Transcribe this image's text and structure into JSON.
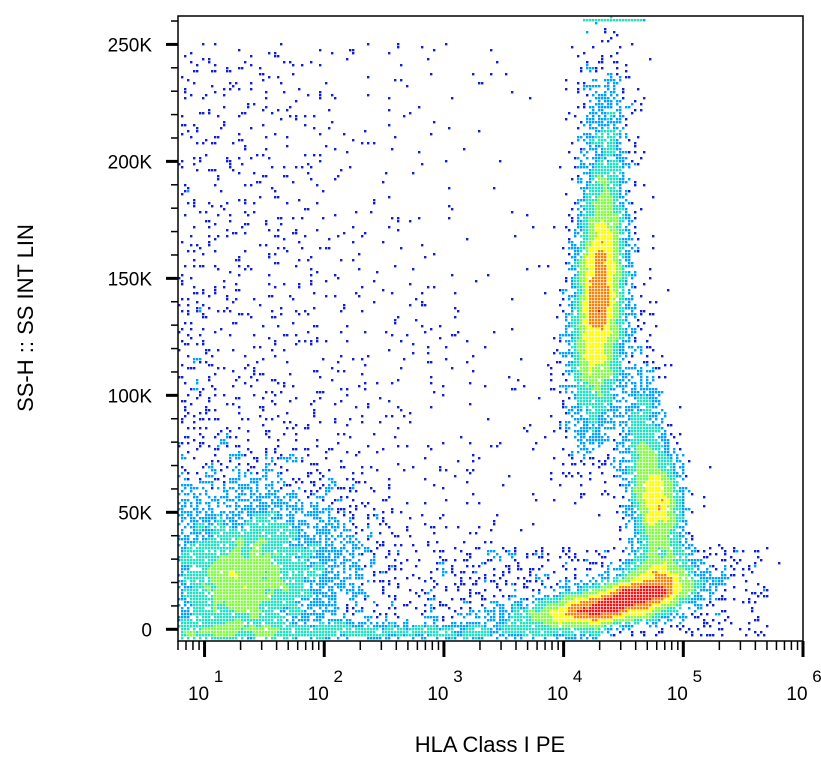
{
  "chart_data": {
    "type": "scatter",
    "xlabel": "HLA Class I PE",
    "ylabel": "SS-H :: SS INT LIN",
    "x_scale": "log",
    "xlim": [
      6,
      1000000
    ],
    "ylim": [
      -5000,
      262144
    ],
    "x_ticks": [
      {
        "value": 10,
        "base": "10",
        "exp": "1"
      },
      {
        "value": 100,
        "base": "10",
        "exp": "2"
      },
      {
        "value": 1000,
        "base": "10",
        "exp": "3"
      },
      {
        "value": 10000,
        "base": "10",
        "exp": "4"
      },
      {
        "value": 100000,
        "base": "10",
        "exp": "5"
      },
      {
        "value": 1000000,
        "base": "10",
        "exp": "6"
      }
    ],
    "y_ticks": [
      {
        "value": 0,
        "label": "0"
      },
      {
        "value": 50000,
        "label": "50K"
      },
      {
        "value": 100000,
        "label": "100K"
      },
      {
        "value": 150000,
        "label": "150K"
      },
      {
        "value": 200000,
        "label": "200K"
      },
      {
        "value": 250000,
        "label": "250K"
      }
    ],
    "grid": false,
    "colormap": [
      "#1020d0",
      "#00a0ff",
      "#20e0c0",
      "#80ff40",
      "#ffff00",
      "#ff8000",
      "#ff1010"
    ],
    "populations": [
      {
        "x_center": 30,
        "y_center": 28000,
        "x_spread_decades": 0.45,
        "y_spread": 18000,
        "density": "medium"
      },
      {
        "x_center": 20000,
        "y_center": 145000,
        "x_spread_decades": 0.1,
        "y_spread": 30000,
        "density": "high"
      },
      {
        "x_center": 60000,
        "y_center": 55000,
        "x_spread_decades": 0.08,
        "y_spread": 15000,
        "density": "medium-high"
      },
      {
        "x_center": 30000,
        "y_center": 12000,
        "x_spread_decades": 0.25,
        "y_spread": 6000,
        "density": "highest"
      }
    ]
  }
}
